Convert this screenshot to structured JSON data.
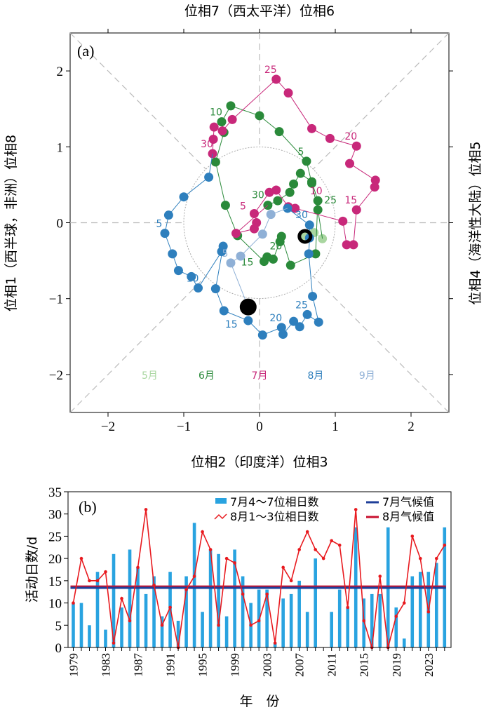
{
  "chart_data": [
    {
      "type": "scatter",
      "panel_label": "(a)",
      "xlabel": "位相2（印度洋）位相3",
      "ylabel_left": "位相1（西半球，非洲）位相8",
      "ylabel_right": "位相4（海洋性大陆）位相5",
      "title_top": "位相7（西太平洋）位相6",
      "xlim": [
        -2.5,
        2.5
      ],
      "ylim": [
        -2.5,
        2.5
      ],
      "xticks": [
        "−2",
        "−1",
        "0",
        "1",
        "2"
      ],
      "yticks": [
        "−2",
        "−1",
        "0",
        "1",
        "2"
      ],
      "tick_values": [
        -2,
        -1,
        0,
        1,
        2
      ],
      "reference_circle_radius": 1,
      "start_marker": [
        0.6,
        -0.18
      ],
      "end_marker": [
        -0.15,
        -1.11
      ],
      "series": [
        {
          "name": "5月",
          "color": "#a9d6a0",
          "points": [
            [
              0.6,
              -0.18
            ],
            [
              0.63,
              -0.17
            ],
            [
              0.72,
              -0.13
            ],
            [
              0.83,
              -0.21
            ]
          ],
          "labels": []
        },
        {
          "name": "6月",
          "color": "#2a8a3a",
          "points": [
            [
              0.77,
              0.17
            ],
            [
              0.69,
              0.52
            ],
            [
              0.62,
              0.81
            ],
            [
              0.26,
              1.2
            ],
            [
              0.0,
              1.41
            ],
            [
              -0.38,
              1.54
            ],
            [
              -0.5,
              1.33
            ],
            [
              -0.47,
              1.19
            ],
            [
              -0.58,
              0.8
            ],
            [
              -0.45,
              0.23
            ],
            [
              -0.29,
              -0.17
            ],
            [
              0.06,
              -0.51
            ],
            [
              0.1,
              -0.45
            ],
            [
              0.18,
              -0.48
            ],
            [
              0.27,
              -0.25
            ],
            [
              0.29,
              -0.18
            ],
            [
              0.41,
              -0.56
            ],
            [
              0.74,
              -0.41
            ],
            [
              0.77,
              0.29
            ],
            [
              0.69,
              0.54
            ],
            [
              0.54,
              0.65
            ],
            [
              0.45,
              0.51
            ],
            [
              0.4,
              0.4
            ],
            [
              0.24,
              0.29
            ],
            [
              0.11,
              0.23
            ]
          ],
          "labels": [
            {
              "text": "5",
              "index": 2
            },
            {
              "text": "10",
              "index": 6
            },
            {
              "text": "15",
              "index": 11
            },
            {
              "text": "20",
              "index": 13
            },
            {
              "text": "25",
              "index": 18
            },
            {
              "text": "30",
              "index": 24
            }
          ]
        },
        {
          "name": "7月",
          "color": "#c8287a",
          "points": [
            [
              -0.31,
              -0.14
            ],
            [
              -0.07,
              -0.08
            ],
            [
              -0.04,
              0.0
            ],
            [
              -0.07,
              0.12
            ],
            [
              0.13,
              0.4
            ],
            [
              0.22,
              0.43
            ],
            [
              0.38,
              0.21
            ],
            [
              0.47,
              0.19
            ],
            [
              1.1,
              0.02
            ],
            [
              1.15,
              -0.29
            ],
            [
              1.24,
              -0.29
            ],
            [
              1.28,
              0.17
            ],
            [
              1.52,
              0.47
            ],
            [
              1.53,
              0.56
            ],
            [
              1.19,
              0.78
            ],
            [
              1.28,
              1.01
            ],
            [
              0.93,
              1.11
            ],
            [
              0.69,
              1.24
            ],
            [
              0.38,
              1.71
            ],
            [
              0.22,
              1.89
            ],
            [
              -0.36,
              1.36
            ],
            [
              -0.49,
              1.21
            ],
            [
              -0.6,
              1.26
            ],
            [
              -0.61,
              1.1
            ],
            [
              -0.62,
              0.91
            ]
          ],
          "labels": [
            {
              "text": "5",
              "index": 3
            },
            {
              "text": "10",
              "index": 7
            },
            {
              "text": "15",
              "index": 11
            },
            {
              "text": "20",
              "index": 15
            },
            {
              "text": "25",
              "index": 19
            },
            {
              "text": "30",
              "index": 24
            }
          ]
        },
        {
          "name": "8月",
          "color": "#2e7fbd",
          "points": [
            [
              -0.67,
              0.6
            ],
            [
              -1.0,
              0.34
            ],
            [
              -1.2,
              0.1
            ],
            [
              -1.25,
              -0.14
            ],
            [
              -1.15,
              -0.41
            ],
            [
              -1.07,
              -0.63
            ],
            [
              -0.9,
              -0.71
            ],
            [
              -0.81,
              -0.86
            ],
            [
              -0.5,
              -0.38
            ],
            [
              -0.48,
              -0.31
            ],
            [
              -0.58,
              -0.87
            ],
            [
              -0.47,
              -1.16
            ],
            [
              -0.15,
              -1.29
            ],
            [
              0.04,
              -1.48
            ],
            [
              0.29,
              -1.38
            ],
            [
              0.31,
              -1.47
            ],
            [
              0.45,
              -1.3
            ],
            [
              0.53,
              -1.37
            ],
            [
              0.63,
              -1.21
            ],
            [
              0.78,
              -1.31
            ],
            [
              0.7,
              -0.97
            ],
            [
              0.65,
              -0.41
            ],
            [
              0.66,
              -0.2
            ],
            [
              0.66,
              -0.03
            ],
            [
              0.37,
              0.19
            ]
          ],
          "labels": [
            {
              "text": "5",
              "index": 3
            },
            {
              "text": "10",
              "index": 7
            },
            {
              "text": "15",
              "index": 12
            },
            {
              "text": "20",
              "index": 14
            },
            {
              "text": "25",
              "index": 18
            },
            {
              "text": "30",
              "index": 24
            }
          ]
        },
        {
          "name": "9月",
          "color": "#8fb0d6",
          "points": [
            [
              0.15,
              0.11
            ],
            [
              0.04,
              -0.15
            ],
            [
              -0.25,
              -0.44
            ],
            [
              -0.38,
              -0.53
            ],
            [
              -0.15,
              -1.11
            ]
          ],
          "labels": [
            {
              "text": "5",
              "index": 3
            }
          ]
        }
      ]
    },
    {
      "type": "bar",
      "panel_label": "(b)",
      "ylabel": "活动日数/d",
      "xlabel": "年　份",
      "ylim": [
        0,
        35
      ],
      "yticks": [
        0,
        5,
        10,
        15,
        20,
        25,
        30,
        35
      ],
      "xtick_labels": [
        "1979",
        "1983",
        "1987",
        "1991",
        "1995",
        "1999",
        "2003",
        "2007",
        "2011",
        "2015",
        "2019",
        "2023"
      ],
      "years": [
        1979,
        1980,
        1981,
        1982,
        1983,
        1984,
        1985,
        1986,
        1987,
        1988,
        1989,
        1990,
        1991,
        1992,
        1993,
        1994,
        1995,
        1996,
        1997,
        1998,
        1999,
        2000,
        2001,
        2002,
        2003,
        2004,
        2005,
        2006,
        2007,
        2008,
        2009,
        2010,
        2011,
        2012,
        2013,
        2014,
        2015,
        2016,
        2017,
        2018,
        2019,
        2020,
        2021,
        2022,
        2023,
        2024,
        2025
      ],
      "series": [
        {
          "name": "7月4～7位相日数",
          "kind": "bar",
          "color": "#29a3e0",
          "values": [
            10,
            10,
            5,
            17,
            4,
            21,
            9,
            22,
            18,
            12,
            16,
            7,
            17,
            6,
            16,
            28,
            8,
            22,
            21,
            7,
            22,
            16,
            10,
            13,
            13,
            1,
            11,
            12,
            15,
            8,
            20,
            0,
            8,
            13,
            9,
            27,
            11,
            12,
            12,
            27,
            9,
            2,
            16,
            17,
            17,
            19,
            27
          ]
        },
        {
          "name": "8月1～3位相日数",
          "kind": "line",
          "color": "#e8191e",
          "values": [
            10,
            20,
            15,
            15,
            17,
            1,
            11,
            6,
            18,
            31,
            14,
            5,
            9,
            0,
            13,
            16,
            26,
            22,
            5,
            20,
            19,
            12,
            5,
            6,
            12,
            1,
            18,
            15,
            22,
            26,
            22,
            20,
            24,
            23,
            9,
            31,
            6,
            0,
            16,
            0,
            7,
            10,
            25,
            20,
            8,
            20,
            23
          ]
        },
        {
          "name": "7月气候值",
          "kind": "hline",
          "color": "#1f3f99",
          "value": 13.4
        },
        {
          "name": "8月气候值",
          "kind": "hline",
          "color": "#c8102e",
          "value": 13.7
        }
      ]
    }
  ]
}
